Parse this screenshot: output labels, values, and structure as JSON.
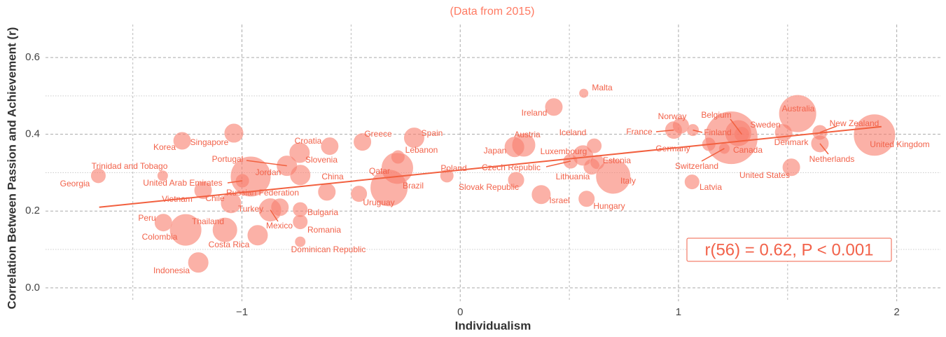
{
  "chart_data": {
    "type": "scatter",
    "title": "(Data from 2015)",
    "x_label": "Individualism",
    "y_label": "Correlation Between Passion and Achievement (r)",
    "annotation": "r(56) = 0.62,  P < 0.001",
    "color": "#f97d6d",
    "grid": true,
    "xlim": [
      -1.9,
      2.2
    ],
    "ylim": [
      -0.035,
      0.686
    ],
    "xticks": [
      {
        "value": -1,
        "label": "−1"
      },
      0,
      1,
      2
    ],
    "yticks": [
      {
        "value": 0,
        "label": "0.0"
      },
      0.2,
      0.4,
      0.6
    ],
    "xminorticks": [
      -1.5,
      -0.5,
      0.5,
      1.5
    ],
    "yminorticks": [
      0.1,
      0.3,
      0.5
    ],
    "trend_line": {
      "x": [
        -1.654,
        1.93
      ],
      "y": [
        0.21,
        0.42
      ]
    },
    "labels": [
      "Georgia",
      "Trinidad and Tobago",
      "Korea",
      "Singapore",
      "Portugal",
      "Croatia",
      "Slovenia",
      "Greece",
      "Spain",
      "Lebanon",
      "United Arab Emirates",
      "Jordan",
      "China",
      "Qatar",
      "Poland",
      "Vietnam",
      "Chile",
      "Russian Federation",
      "Brazil",
      "Turkey",
      "Uruguay",
      "Bulgaria",
      "Peru",
      "Thailand",
      "Mexico",
      "Colombia",
      "Romania",
      "Costa Rica",
      "Dominican Republic",
      "Indonesia",
      "Malta",
      "Ireland",
      "Iceland",
      "Austria",
      "Japan",
      "Luxembourg",
      "Czech Republic",
      "Slovak Republic",
      "Lithuania",
      "Estonia",
      "Italy",
      "Israel",
      "Hungary",
      "Norway",
      "Belgium",
      "France",
      "Finland",
      "Sweden",
      "Australia",
      "New Zealand",
      "Germany",
      "Denmark",
      "Canada",
      "Switzerland",
      "Netherlands",
      "United Kingdom",
      "United States",
      "Latvia"
    ],
    "x": [
      -1.658,
      -1.363,
      -1.274,
      -1.037,
      -0.794,
      -0.598,
      -0.736,
      -0.448,
      -0.211,
      -0.285,
      -0.998,
      -0.96,
      -0.733,
      -0.288,
      -0.061,
      -1.178,
      -1.05,
      -0.611,
      -0.326,
      -0.826,
      -0.464,
      -0.733,
      -1.36,
      -1.258,
      -0.87,
      -1.078,
      -0.733,
      -0.928,
      -0.733,
      -1.2,
      0.566,
      0.429,
      0.614,
      0.291,
      0.25,
      0.563,
      0.506,
      0.256,
      0.602,
      0.627,
      0.701,
      0.371,
      0.579,
      1.011,
      1.29,
      0.979,
      1.066,
      1.274,
      1.546,
      1.648,
      1.139,
      1.482,
      1.242,
      1.21,
      1.648,
      1.898,
      1.517,
      1.062
    ],
    "y": [
      0.292,
      0.292,
      0.383,
      0.403,
      0.318,
      0.369,
      0.352,
      0.38,
      0.391,
      0.341,
      0.279,
      0.29,
      0.294,
      0.312,
      0.292,
      0.254,
      0.221,
      0.25,
      0.261,
      0.21,
      0.245,
      0.204,
      0.17,
      0.151,
      0.203,
      0.151,
      0.172,
      0.137,
      0.12,
      0.066,
      0.507,
      0.471,
      0.37,
      0.372,
      0.367,
      0.345,
      0.33,
      0.281,
      0.316,
      0.327,
      0.29,
      0.243,
      0.232,
      0.423,
      0.4,
      0.411,
      0.411,
      0.403,
      0.454,
      0.405,
      0.374,
      0.405,
      0.391,
      0.363,
      0.376,
      0.398,
      0.314,
      0.276
    ],
    "sizes": [
      100,
      49,
      144,
      169,
      196,
      144,
      196,
      144,
      196,
      81,
      81,
      784,
      196,
      484,
      81,
      144,
      196,
      144,
      676,
      144,
      121,
      100,
      144,
      484,
      256,
      289,
      100,
      196,
      49,
      196,
      36,
      144,
      100,
      256,
      196,
      196,
      100,
      121,
      121,
      100,
      576,
      169,
      121,
      121,
      100,
      144,
      64,
      324,
      676,
      100,
      81,
      144,
      1369,
      64,
      144,
      841,
      144,
      100
    ]
  }
}
